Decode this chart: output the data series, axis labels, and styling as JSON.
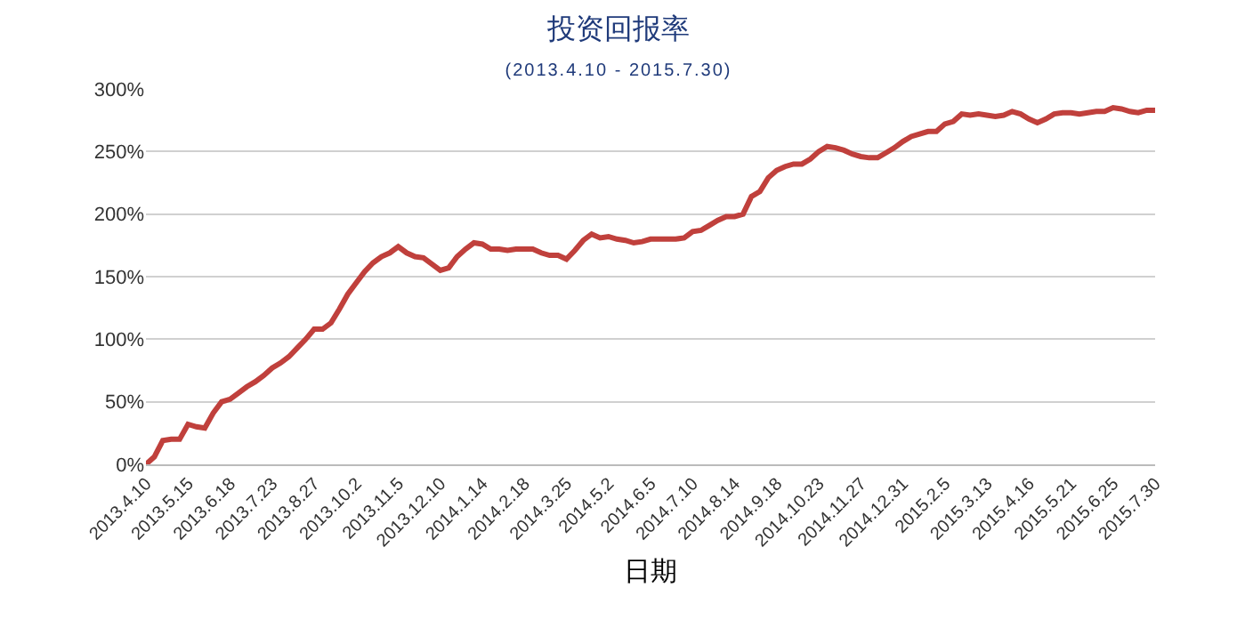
{
  "chart_data": {
    "type": "line",
    "title": "投资回报率",
    "subtitle": "(2013.4.10 - 2015.7.30)",
    "xlabel": "日期",
    "categories": [
      "2013.4.10",
      null,
      null,
      null,
      null,
      "2013.5.15",
      null,
      null,
      null,
      null,
      "2013.6.18",
      null,
      null,
      null,
      null,
      "2013.7.23",
      null,
      null,
      null,
      null,
      "2013.8.27",
      null,
      null,
      null,
      null,
      "2013.10.2",
      null,
      null,
      null,
      null,
      "2013.11.5",
      null,
      null,
      null,
      null,
      "2013.12.10",
      null,
      null,
      null,
      null,
      "2014.1.14",
      null,
      null,
      null,
      null,
      "2014.2.18",
      null,
      null,
      null,
      null,
      "2014.3.25",
      null,
      null,
      null,
      null,
      "2014.5.2",
      null,
      null,
      null,
      null,
      "2014.6.5",
      null,
      null,
      null,
      null,
      "2014.7.10",
      null,
      null,
      null,
      null,
      "2014.8.14",
      null,
      null,
      null,
      null,
      "2014.9.18",
      null,
      null,
      null,
      null,
      "2014.10.23",
      null,
      null,
      null,
      null,
      "2014.11.27",
      null,
      null,
      null,
      null,
      "2014.12.31",
      null,
      null,
      null,
      null,
      "2015.2.5",
      null,
      null,
      null,
      null,
      "2015.3.13",
      null,
      null,
      null,
      null,
      "2015.4.16",
      null,
      null,
      null,
      null,
      "2015.5.21",
      null,
      null,
      null,
      null,
      "2015.6.25",
      null,
      null,
      null,
      null,
      "2015.7.30"
    ],
    "series": [
      {
        "color": "#c0403c",
        "values": [
          0,
          6,
          19,
          20,
          20,
          32,
          30,
          29,
          41,
          50,
          52,
          57,
          62,
          66,
          71,
          77,
          81,
          86,
          93,
          100,
          108,
          108,
          113,
          124,
          136,
          145,
          154,
          161,
          166,
          169,
          174,
          169,
          166,
          165,
          160,
          155,
          157,
          166,
          172,
          177,
          176,
          172,
          172,
          171,
          172,
          172,
          172,
          169,
          167,
          167,
          164,
          171,
          179,
          184,
          181,
          182,
          180,
          179,
          177,
          178,
          180,
          180,
          180,
          180,
          181,
          186,
          187,
          191,
          195,
          198,
          198,
          200,
          214,
          218,
          229,
          235,
          238,
          240,
          240,
          244,
          250,
          254,
          253,
          251,
          248,
          246,
          245,
          245,
          249,
          253,
          258,
          262,
          264,
          266,
          266,
          272,
          274,
          280,
          279,
          280,
          279,
          278,
          279,
          282,
          280,
          276,
          273,
          276,
          280,
          281,
          281,
          280,
          281,
          282,
          282,
          285,
          284,
          282,
          281,
          283,
          283
        ]
      }
    ],
    "ylim": [
      0,
      300
    ],
    "yticks": [
      {
        "value": 0,
        "label": "0%"
      },
      {
        "value": 50,
        "label": "50%"
      },
      {
        "value": 100,
        "label": "100%"
      },
      {
        "value": 150,
        "label": "150%"
      },
      {
        "value": 200,
        "label": "200%"
      },
      {
        "value": 250,
        "label": "250%"
      },
      {
        "value": 300,
        "label": "300%"
      }
    ],
    "grid": "y",
    "marker": "none",
    "line_style": "solid"
  }
}
